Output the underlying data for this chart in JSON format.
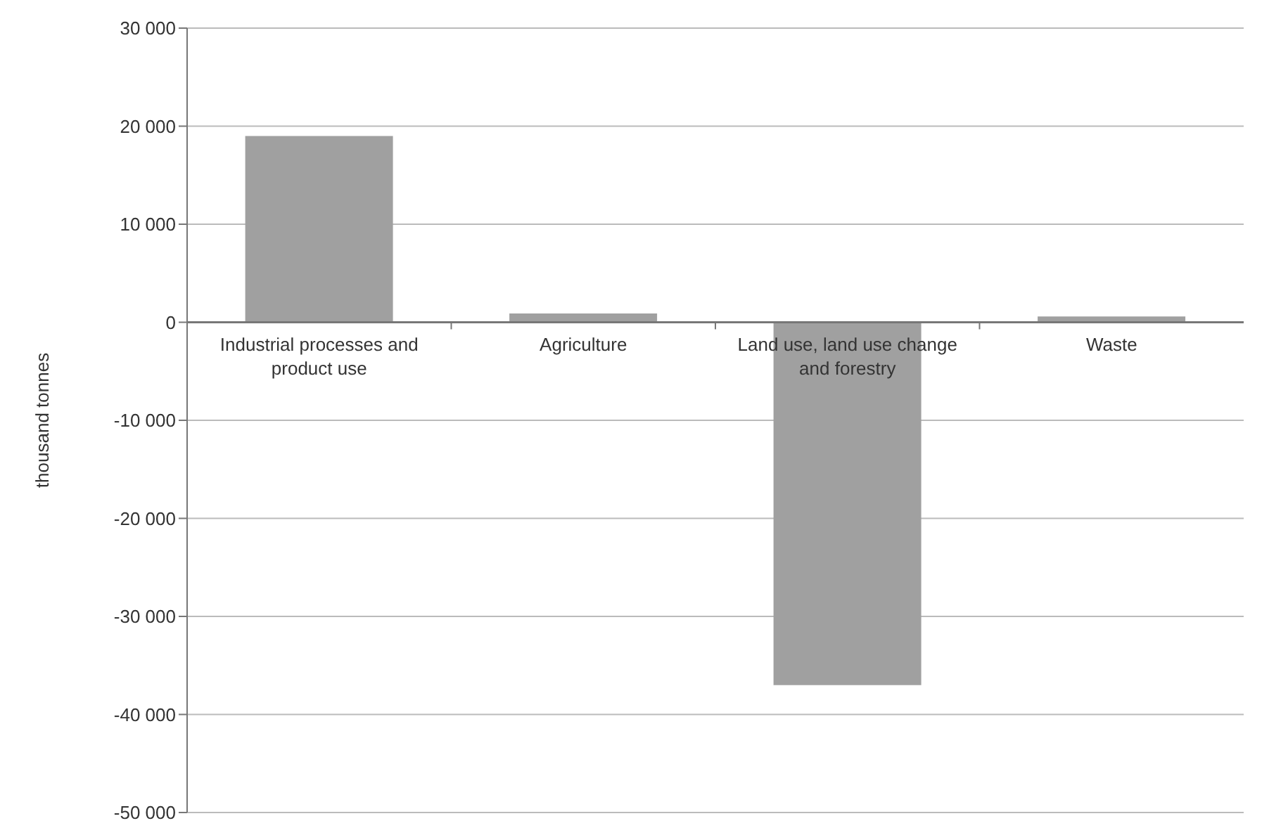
{
  "chart_data": {
    "type": "bar",
    "ylabel": "thousand tonnes",
    "categories": [
      "Industrial processes and product use",
      "Agriculture",
      "Land use, land use change and forestry",
      "Waste"
    ],
    "values": [
      19000,
      900,
      -37000,
      600
    ],
    "color": "#a0a0a0",
    "ylim": [
      -50000,
      30000
    ],
    "yticks": [
      {
        "value": -50000,
        "label": "-50 000"
      },
      {
        "value": -40000,
        "label": "-40 000"
      },
      {
        "value": -30000,
        "label": "-30 000"
      },
      {
        "value": -20000,
        "label": "-20 000"
      },
      {
        "value": -10000,
        "label": "-10 000"
      },
      0,
      {
        "value": 10000,
        "label": "10 000"
      },
      {
        "value": 20000,
        "label": "20 000"
      },
      {
        "value": 30000,
        "label": "30 000"
      }
    ],
    "grid": "y"
  }
}
